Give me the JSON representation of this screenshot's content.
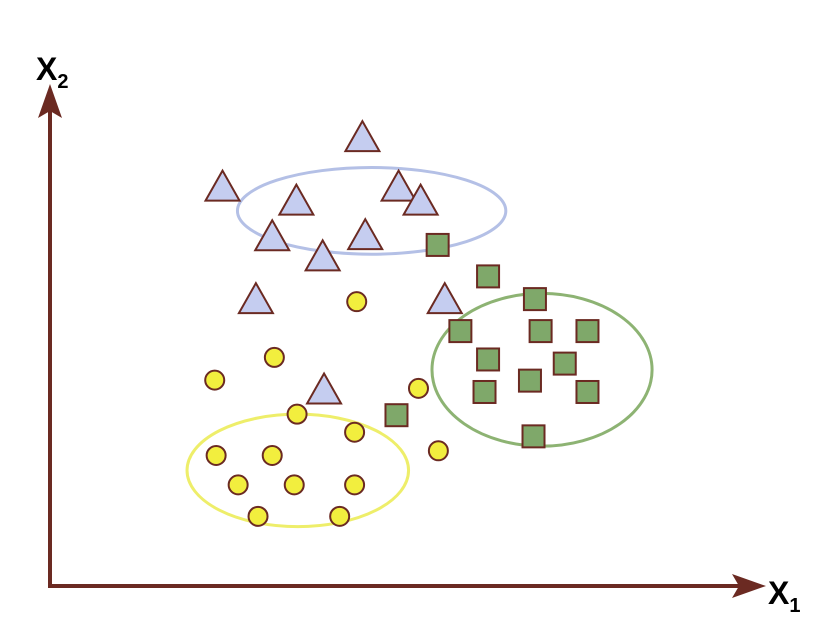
{
  "chart_data": {
    "type": "scatter",
    "title": "",
    "xlabel": "X",
    "xlabel_subscript": "1",
    "ylabel": "X",
    "ylabel_subscript": "2",
    "xlim": [
      0,
      100
    ],
    "ylim": [
      0,
      100
    ],
    "grid": false,
    "legend": "none",
    "axis_color": "#6b2a22",
    "series": [
      {
        "marker": "triangle",
        "fill": "#c5cdf0",
        "stroke": "#6b2a22",
        "points": [
          {
            "x": 44.0,
            "y": 86.6
          },
          {
            "x": 24.3,
            "y": 77.0
          },
          {
            "x": 34.7,
            "y": 74.3
          },
          {
            "x": 49.1,
            "y": 77.0
          },
          {
            "x": 52.2,
            "y": 74.3
          },
          {
            "x": 31.3,
            "y": 67.4
          },
          {
            "x": 44.4,
            "y": 67.6
          },
          {
            "x": 38.4,
            "y": 63.5
          },
          {
            "x": 29.0,
            "y": 55.2
          },
          {
            "x": 55.6,
            "y": 55.2
          },
          {
            "x": 38.6,
            "y": 37.7
          }
        ]
      },
      {
        "marker": "square",
        "fill": "#7fa86a",
        "stroke": "#6b2a22",
        "points": [
          {
            "x": 54.6,
            "y": 66.1
          },
          {
            "x": 61.7,
            "y": 60.0
          },
          {
            "x": 68.3,
            "y": 55.6
          },
          {
            "x": 57.8,
            "y": 49.4
          },
          {
            "x": 69.1,
            "y": 49.4
          },
          {
            "x": 75.7,
            "y": 49.4
          },
          {
            "x": 61.7,
            "y": 43.9
          },
          {
            "x": 72.5,
            "y": 43.1
          },
          {
            "x": 67.6,
            "y": 39.8
          },
          {
            "x": 61.2,
            "y": 37.6
          },
          {
            "x": 75.7,
            "y": 37.6
          },
          {
            "x": 48.8,
            "y": 33.1
          },
          {
            "x": 68.1,
            "y": 29.0
          }
        ]
      },
      {
        "marker": "circle",
        "fill": "#f2ee3e",
        "stroke": "#6b2a22",
        "points": [
          {
            "x": 43.2,
            "y": 55.1
          },
          {
            "x": 31.6,
            "y": 44.3
          },
          {
            "x": 23.2,
            "y": 39.9
          },
          {
            "x": 51.9,
            "y": 38.3
          },
          {
            "x": 34.8,
            "y": 33.3
          },
          {
            "x": 42.9,
            "y": 29.8
          },
          {
            "x": 23.4,
            "y": 25.3
          },
          {
            "x": 31.3,
            "y": 25.3
          },
          {
            "x": 54.7,
            "y": 26.2
          },
          {
            "x": 26.5,
            "y": 19.6
          },
          {
            "x": 34.4,
            "y": 19.6
          },
          {
            "x": 42.9,
            "y": 19.6
          },
          {
            "x": 29.3,
            "y": 13.5
          },
          {
            "x": 40.8,
            "y": 13.5
          }
        ]
      }
    ],
    "clusters": [
      {
        "cx": 45.3,
        "cy": 72.7,
        "rx": 18.9,
        "ry": 8.4,
        "stroke": "#b4c0e6"
      },
      {
        "cx": 69.3,
        "cy": 41.9,
        "rx": 15.5,
        "ry": 14.8,
        "stroke": "#8db373"
      },
      {
        "cx": 34.9,
        "cy": 22.4,
        "rx": 15.6,
        "ry": 10.9,
        "stroke": "#eeee6a"
      }
    ]
  }
}
